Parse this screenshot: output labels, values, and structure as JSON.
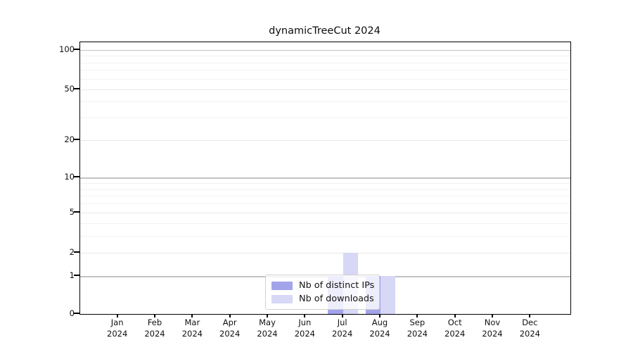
{
  "chart_data": {
    "type": "bar",
    "title": "dynamicTreeCut 2024",
    "categories": [
      "Jan",
      "Feb",
      "Mar",
      "Apr",
      "May",
      "Jun",
      "Jul",
      "Aug",
      "Sep",
      "Oct",
      "Nov",
      "Dec"
    ],
    "year_label": "2024",
    "series": [
      {
        "name": "Nb of distinct IPs",
        "color": "#a3a3ec",
        "values": [
          0,
          0,
          0,
          0,
          0,
          0,
          1,
          1,
          0,
          0,
          0,
          0
        ]
      },
      {
        "name": "Nb of downloads",
        "color": "#d7d7f6",
        "values": [
          0,
          0,
          0,
          0,
          0,
          0,
          2,
          1,
          0,
          0,
          0,
          0
        ]
      }
    ],
    "y_axis": {
      "scale": "log1p",
      "ticks": [
        0,
        1,
        2,
        5,
        10,
        20,
        50,
        100
      ],
      "minor_gridlines": [
        3,
        4,
        6,
        7,
        8,
        9,
        30,
        40,
        60,
        70,
        80,
        90
      ],
      "decade_gridlines": [
        1,
        10,
        100
      ],
      "ylim": [
        0,
        100
      ]
    },
    "x_axis": {
      "second_line": "2024"
    },
    "legend": {
      "position": "center-bottom"
    },
    "grid": true,
    "colors": {
      "axis": "#000000",
      "grid_minor": "#f1f1f1",
      "grid_major": "#e9e9e9",
      "grid_decade": "#c3c3c3",
      "background": "#ffffff"
    }
  }
}
